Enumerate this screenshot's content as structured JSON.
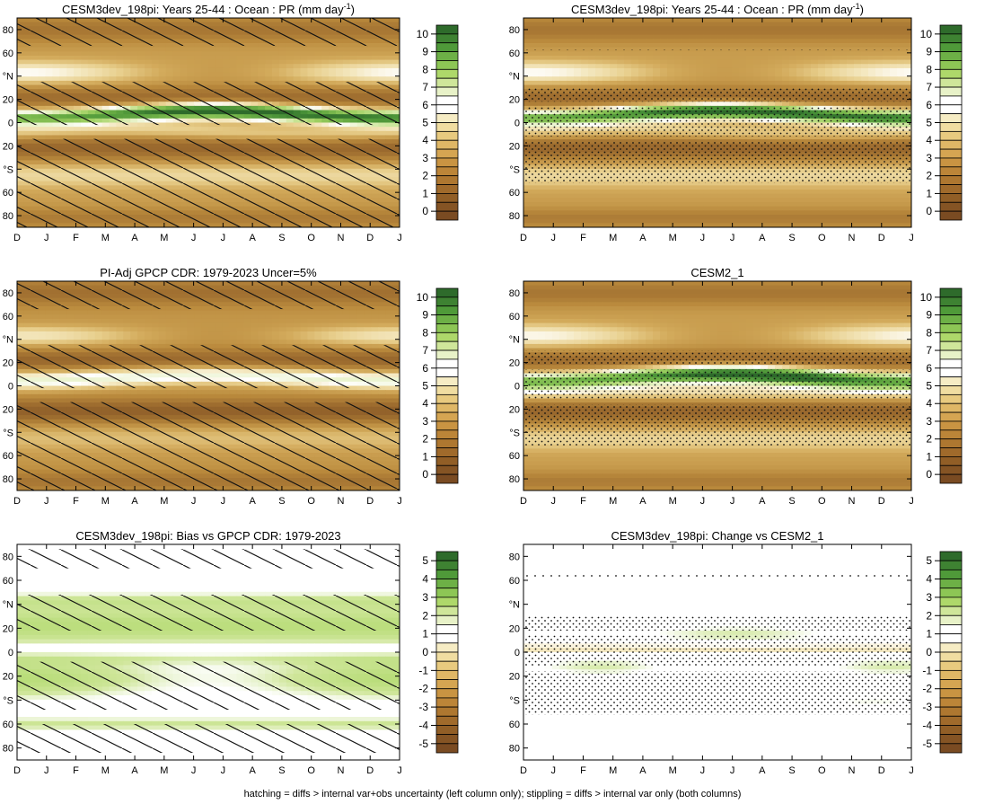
{
  "chart_data": [
    {
      "type": "heatmap",
      "title_main": "CESM3dev_198pi: Years 25-44 : Ocean : PR (mm day",
      "title_sup": "-1",
      "title_end": ")",
      "field": "model",
      "hatching": "diag",
      "stipple": "few"
    },
    {
      "type": "heatmap",
      "title_main": "CESM3dev_198pi: Years 25-44 : Ocean : PR (mm day",
      "title_sup": "-1",
      "title_end": ")",
      "field": "model",
      "hatching": "none",
      "stipple": "dense"
    },
    {
      "type": "heatmap",
      "title_main": "PI-Adj GPCP CDR: 1979-2023 Uncer=5%",
      "field": "obs",
      "hatching": "diag",
      "stipple": "few"
    },
    {
      "type": "heatmap",
      "title_main": "CESM2_1",
      "field": "cesm2",
      "hatching": "none",
      "stipple": "dense"
    },
    {
      "type": "heatmap",
      "title_main": "CESM3dev_198pi: Bias vs GPCP CDR: 1979-2023",
      "field": "bias",
      "hatching": "diag",
      "stipple": "few"
    },
    {
      "type": "heatmap",
      "title_main": "CESM3dev_198pi: Change vs CESM2_1",
      "field": "change",
      "hatching": "none",
      "stipple": "dense"
    }
  ],
  "axes": {
    "x_ticks": [
      "D",
      "J",
      "F",
      "M",
      "A",
      "M",
      "J",
      "J",
      "A",
      "S",
      "O",
      "N",
      "D",
      "J"
    ],
    "y_ticks": [
      "80",
      "60",
      "°N",
      "20",
      "0",
      "20",
      "°S",
      "60",
      "80"
    ],
    "y_values": [
      80,
      60,
      40,
      20,
      0,
      -20,
      -40,
      -60,
      -80
    ],
    "ylim": [
      -90,
      90
    ]
  },
  "colorbars": {
    "abs": {
      "labels": [
        "10",
        "9",
        "8",
        "7",
        "6",
        "5",
        "4",
        "3",
        "2",
        "1",
        "0"
      ],
      "colors": [
        "#2e6b2b",
        "#3e8232",
        "#4f9a39",
        "#6db046",
        "#8dc655",
        "#aed86a",
        "#cfe69a",
        "#e8f2c8",
        "#ffffff",
        "#ffffff",
        "#f6ecc4",
        "#f0dda1",
        "#e8ca7f",
        "#dfb766",
        "#d5a552",
        "#c99442",
        "#bc8538",
        "#ae7730",
        "#a06a2b",
        "#915e26",
        "#855424",
        "#7a4b22"
      ]
    },
    "diff": {
      "labels": [
        "5",
        "4",
        "3",
        "2",
        "1",
        "0",
        "-1",
        "-2",
        "-3",
        "-4",
        "-5"
      ],
      "colors": [
        "#2e6b2b",
        "#3e8232",
        "#4f9a39",
        "#6db046",
        "#8dc655",
        "#aed86a",
        "#cfe69a",
        "#e8f2c8",
        "#ffffff",
        "#ffffff",
        "#f6ecc4",
        "#f0dda1",
        "#e8ca7f",
        "#dfb766",
        "#d5a552",
        "#c99442",
        "#bc8538",
        "#ae7730",
        "#a06a2b",
        "#915e26",
        "#855424",
        "#7a4b22"
      ]
    }
  },
  "footer": "hatching = diffs > internal var+obs uncertainty (left column only); stippling = diffs > internal var only (both columns)"
}
